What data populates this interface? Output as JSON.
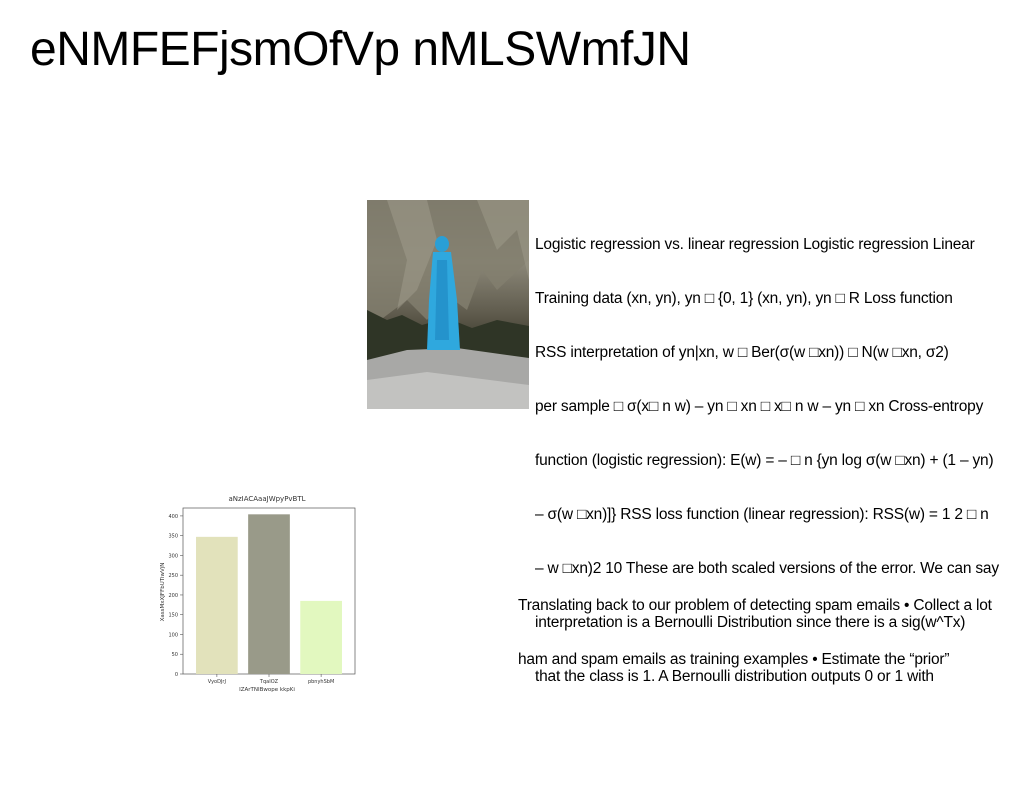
{
  "slide": {
    "title": "eNMFEFjsmOfVp nMLSWmfJN"
  },
  "text_block_1": {
    "lines": [
      "Logistic regression vs. linear regression Logistic regression Linear",
      "Training data (xn, yn), yn □ {0, 1} (xn, yn), yn □ R Loss function",
      "RSS interpretation of yn|xn, w □ Ber(σ(w □xn)) □ N(w □xn, σ2)",
      "per sample □ σ(x□ n w) – yn □ xn □ x□ n w – yn □ xn Cross-entropy",
      "function (logistic regression): E(w) = – □ n {yn log σ(w □xn) + (1 – yn)",
      "– σ(w □xn)]} RSS loss function (linear regression): RSS(w) = 1 2 □ n",
      "– w □xn)2 10 These are both scaled versions of the error. We can say",
      "interpretation is a Bernoulli Distribution since there is a sig(w^Tx)",
      "that the class is 1. A Bernoulli distribution outputs 0 or 1 with"
    ]
  },
  "text_block_2": {
    "lines": [
      "Translating back to our problem of detecting spam emails • Collect a lot",
      "ham and spam emails as training examples • Estimate the “prior”"
    ]
  },
  "chart_data": {
    "type": "bar",
    "title": "aNzIACAaaJWpyPvBTL",
    "xlabel": "IZArTNIBwope kkpKi",
    "ylabel": "XassMxXJFFbUTiwVjN",
    "categories": [
      "VyoDJrJ",
      "TqaIOZ",
      "pbnyhSbM"
    ],
    "values": [
      347,
      404,
      185
    ],
    "colors": [
      "#e2e2bb",
      "#999a89",
      "#e2f8bf"
    ],
    "ylim": [
      0,
      420
    ],
    "yticks": [
      0,
      50,
      100,
      150,
      200,
      250,
      300,
      350,
      400
    ],
    "grid": false
  }
}
